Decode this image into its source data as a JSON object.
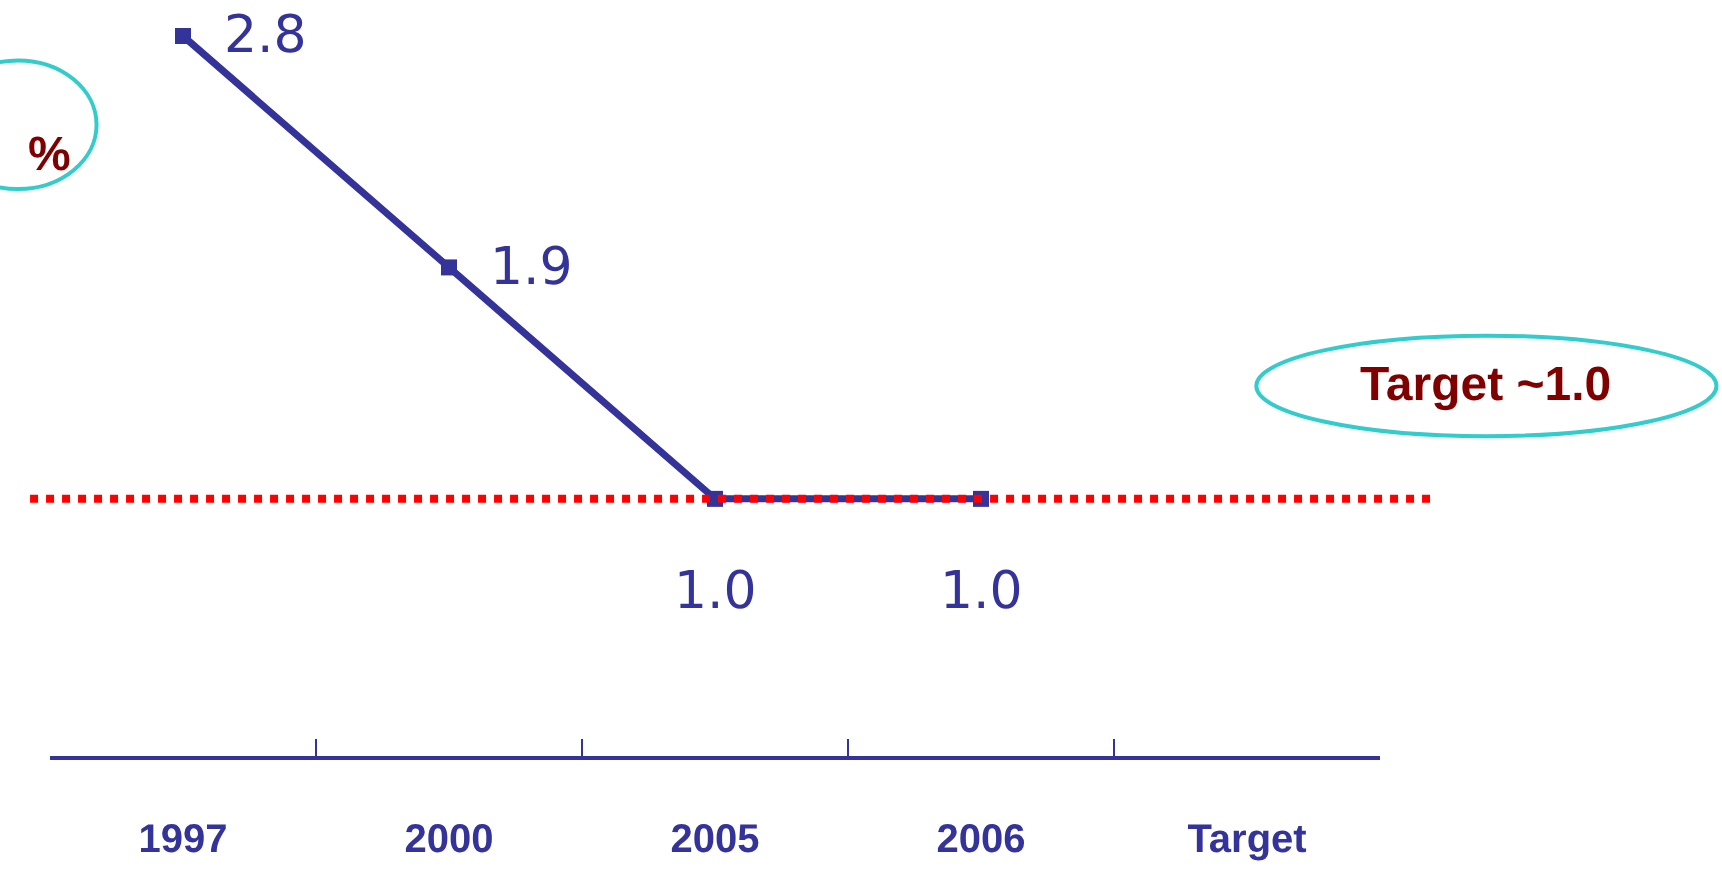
{
  "chart_data": {
    "type": "line",
    "categories": [
      "1997",
      "2000",
      "2005",
      "2006",
      "Target"
    ],
    "series": [
      {
        "color": "#333399",
        "values": [
          2.8,
          1.9,
          1.0,
          1.0,
          null
        ],
        "value_labels": [
          "2.8",
          "1.9",
          "1.0",
          "1.0",
          null
        ]
      }
    ],
    "marker": "square",
    "line_style": "solid",
    "ref_lines": [
      {
        "axis": "y",
        "value": 1.0,
        "label": "Target ~1.0",
        "color": "#ff0000",
        "line_style": "dotted"
      }
    ],
    "annotations": [
      "%"
    ]
  }
}
